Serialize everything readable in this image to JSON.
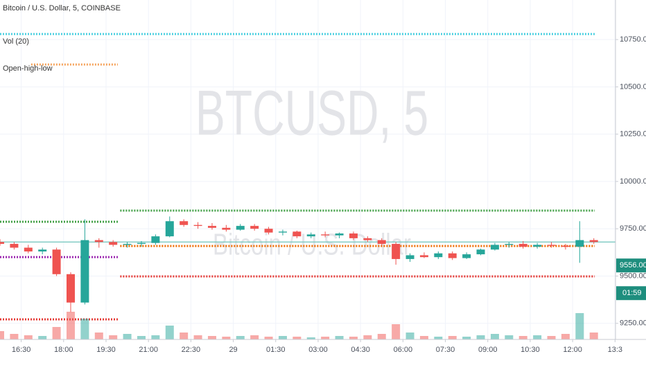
{
  "chart_data": {
    "type": "candlestick",
    "title": "Bitcoin / U.S. Dollar, 5, COINBASE",
    "legend": [
      "Vol (20)",
      "Open-high-low"
    ],
    "watermark": "BTCUSD, 5",
    "watermark_sub": "Bitcoin / U.S. Dollar",
    "up_color": "#26a69a",
    "down_color": "#ef5350",
    "x": [
      945,
      975,
      1005,
      1035,
      1065,
      1095,
      1125,
      1155,
      1185,
      1215,
      1245,
      1275,
      1305,
      1335,
      1365,
      1395,
      1425,
      1455,
      1485,
      1515,
      1545,
      1575,
      1605,
      1635,
      1665,
      1695,
      1725,
      1755,
      1785,
      1815,
      1845,
      1875,
      1905,
      1935,
      1965,
      1995,
      2025,
      2055,
      2085,
      2115,
      2145,
      2175,
      2205
    ],
    "open": [
      9680,
      9670,
      9650,
      9630,
      9640,
      9510,
      9360,
      9690,
      9680,
      9665,
      9670,
      9675,
      9710,
      9790,
      9770,
      9765,
      9755,
      9745,
      9765,
      9750,
      9730,
      9735,
      9710,
      9720,
      9715,
      9725,
      9700,
      9690,
      9670,
      9590,
      9610,
      9600,
      9620,
      9595,
      9615,
      9640,
      9665,
      9670,
      9655,
      9665,
      9660,
      9655,
      9690
    ],
    "high": [
      9695,
      9680,
      9665,
      9650,
      9650,
      9520,
      9800,
      9700,
      9690,
      9680,
      9685,
      9720,
      9815,
      9800,
      9785,
      9780,
      9770,
      9775,
      9775,
      9760,
      9745,
      9740,
      9730,
      9735,
      9730,
      9735,
      9710,
      9700,
      9680,
      9620,
      9625,
      9630,
      9630,
      9625,
      9645,
      9675,
      9680,
      9685,
      9675,
      9680,
      9670,
      9790,
      9700
    ],
    "low": [
      9660,
      9640,
      9620,
      9615,
      9500,
      9310,
      9350,
      9650,
      9655,
      9650,
      9655,
      9665,
      9705,
      9760,
      9750,
      9745,
      9735,
      9740,
      9740,
      9720,
      9715,
      9700,
      9700,
      9705,
      9700,
      9690,
      9680,
      9660,
      9560,
      9575,
      9595,
      9590,
      9585,
      9590,
      9610,
      9635,
      9650,
      9645,
      9645,
      9650,
      9640,
      9570,
      9670
    ],
    "close": [
      9670,
      9650,
      9630,
      9640,
      9510,
      9360,
      9690,
      9680,
      9665,
      9670,
      9675,
      9710,
      9790,
      9770,
      9765,
      9755,
      9745,
      9765,
      9750,
      9730,
      9735,
      9710,
      9720,
      9715,
      9725,
      9700,
      9690,
      9670,
      9590,
      9610,
      9600,
      9620,
      9595,
      9615,
      9640,
      9665,
      9670,
      9655,
      9665,
      9660,
      9655,
      9690,
      9680
    ],
    "volume": [
      12,
      8,
      6,
      5,
      18,
      40,
      30,
      10,
      6,
      8,
      5,
      6,
      20,
      10,
      6,
      5,
      4,
      5,
      6,
      4,
      5,
      4,
      3,
      4,
      5,
      4,
      6,
      8,
      22,
      10,
      5,
      4,
      5,
      4,
      6,
      8,
      6,
      5,
      6,
      5,
      8,
      38,
      10
    ],
    "levels": [
      {
        "value": 10779,
        "color": "#4dd0e1",
        "x": [
          945,
          2207
        ]
      },
      {
        "value": 10618,
        "color": "#f5a35c",
        "x": [
          1011,
          1195
        ]
      },
      {
        "value": 9787,
        "color": "#43a047",
        "x": [
          945,
          1195
        ]
      },
      {
        "value": 9600,
        "color": "#9c27b0",
        "x": [
          945,
          1195
        ]
      },
      {
        "value": 9271,
        "color": "#e53935",
        "x": [
          945,
          1195
        ]
      },
      {
        "value": 9846,
        "color": "#43a047",
        "x": [
          1200,
          2207
        ]
      },
      {
        "value": 9659,
        "color": "#ef6c00",
        "x": [
          1200,
          2207
        ]
      },
      {
        "value": 9498,
        "color": "#e53935",
        "x": [
          1200,
          2207
        ]
      }
    ],
    "price_line": 9680,
    "last_price": {
      "value": 9556,
      "label": "9556.00"
    },
    "countdown": "01:59",
    "xlim": [
      945,
      2251
    ],
    "ylim": [
      9165,
      10959
    ],
    "xticks": [
      {
        "value": 990,
        "label": "16:30"
      },
      {
        "value": 1080,
        "label": "18:00"
      },
      {
        "value": 1170,
        "label": "19:30"
      },
      {
        "value": 1260,
        "label": "21:00"
      },
      {
        "value": 1350,
        "label": "22:30"
      },
      {
        "value": 1440,
        "label": "29"
      },
      {
        "value": 1530,
        "label": "01:30"
      },
      {
        "value": 1620,
        "label": "03:00"
      },
      {
        "value": 1710,
        "label": "04:30"
      },
      {
        "value": 1800,
        "label": "06:00"
      },
      {
        "value": 1890,
        "label": "07:30"
      },
      {
        "value": 1980,
        "label": "09:00"
      },
      {
        "value": 2070,
        "label": "10:30"
      },
      {
        "value": 2160,
        "label": "12:00"
      },
      {
        "value": 2250,
        "label": "13:3"
      }
    ],
    "yticks": [
      {
        "value": 9250,
        "label": "9250.00"
      },
      {
        "value": 9500,
        "label": "9500.00"
      },
      {
        "value": 9750,
        "label": "9750.00"
      },
      {
        "value": 10000,
        "label": "10000.00"
      },
      {
        "value": 10250,
        "label": "10250.00"
      },
      {
        "value": 10500,
        "label": "10500.00"
      },
      {
        "value": 10750,
        "label": "10750.00"
      }
    ],
    "grid": true
  }
}
